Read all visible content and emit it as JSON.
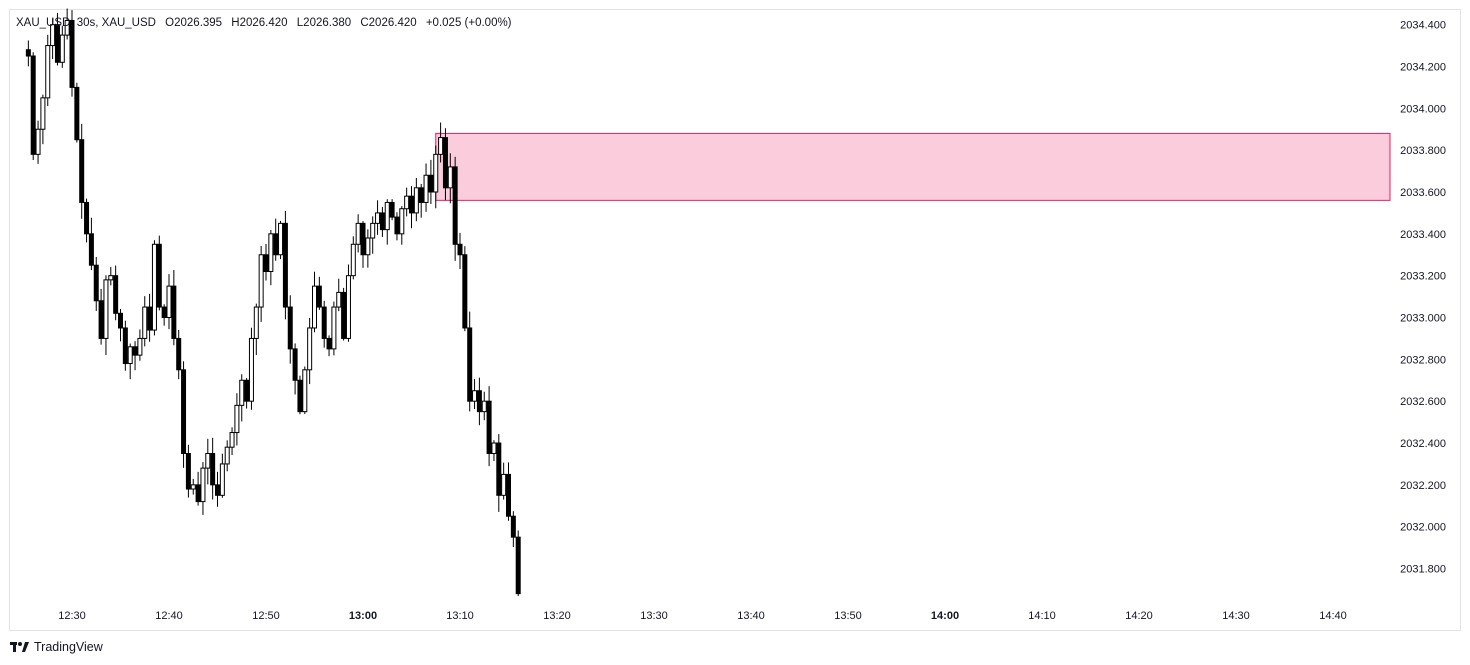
{
  "header": {
    "symbol": "XAU_USD, 30s, XAU_USD",
    "open": "O2026.395",
    "high": "H2026.420",
    "low": "L2026.380",
    "close": "C2026.420",
    "change": "+0.025 (+0.00%)"
  },
  "brand": {
    "name": "TradingView",
    "icon": "tradingview-logo-icon"
  },
  "colors": {
    "candle": "#000000",
    "zone_fill": "#f8bbd0",
    "zone_border": "#e91e63",
    "axis_text": "#131722",
    "frame": "#e0e3eb"
  },
  "chart_data": {
    "type": "candlestick",
    "y_axis": {
      "labels": [
        "2034.400",
        "2034.200",
        "2034.000",
        "2033.800",
        "2033.600",
        "2033.400",
        "2033.200",
        "2033.000",
        "2032.800",
        "2032.600",
        "2032.400",
        "2032.200",
        "2032.000",
        "2031.800"
      ],
      "range": [
        2031.64,
        2034.47
      ]
    },
    "x_axis": {
      "labels": [
        {
          "text": "12:30",
          "bold": false
        },
        {
          "text": "12:40",
          "bold": false
        },
        {
          "text": "12:50",
          "bold": false
        },
        {
          "text": "13:00",
          "bold": true
        },
        {
          "text": "13:10",
          "bold": false
        },
        {
          "text": "13:20",
          "bold": false
        },
        {
          "text": "13:30",
          "bold": false
        },
        {
          "text": "13:40",
          "bold": false
        },
        {
          "text": "13:50",
          "bold": false
        },
        {
          "text": "14:00",
          "bold": true
        },
        {
          "text": "14:10",
          "bold": false
        },
        {
          "text": "14:20",
          "bold": false
        },
        {
          "text": "14:30",
          "bold": false
        },
        {
          "text": "14:40",
          "bold": false
        }
      ],
      "interval": "30s"
    },
    "zone": {
      "from_time": "13:07:30",
      "to_time": "14:47:00",
      "top": 2033.88,
      "bottom": 2033.56
    },
    "trend_path": [
      [
        "12:25:30",
        2034.25
      ],
      [
        "12:26:00",
        2033.78
      ],
      [
        "12:26:30",
        2033.9
      ],
      [
        "12:27:00",
        2034.05
      ],
      [
        "12:27:30",
        2034.3
      ],
      [
        "12:28:00",
        2034.4
      ],
      [
        "12:28:30",
        2034.22
      ],
      [
        "12:29:00",
        2034.35
      ],
      [
        "12:29:30",
        2034.42
      ],
      [
        "12:30:00",
        2034.1
      ],
      [
        "12:30:30",
        2033.85
      ],
      [
        "12:31:00",
        2033.55
      ],
      [
        "12:31:30",
        2033.4
      ],
      [
        "12:32:00",
        2033.25
      ],
      [
        "12:32:30",
        2033.08
      ],
      [
        "12:33:00",
        2032.9
      ],
      [
        "12:33:30",
        2033.18
      ],
      [
        "12:34:00",
        2033.2
      ],
      [
        "12:34:30",
        2033.02
      ],
      [
        "12:35:00",
        2032.95
      ],
      [
        "12:35:30",
        2032.78
      ],
      [
        "12:36:00",
        2032.86
      ],
      [
        "12:36:30",
        2032.82
      ],
      [
        "12:37:00",
        2032.9
      ],
      [
        "12:37:30",
        2033.05
      ],
      [
        "12:38:00",
        2032.94
      ],
      [
        "12:38:30",
        2033.35
      ],
      [
        "12:39:00",
        2033.05
      ],
      [
        "12:39:30",
        2033.0
      ],
      [
        "12:40:00",
        2033.15
      ],
      [
        "12:40:30",
        2032.9
      ],
      [
        "12:41:00",
        2032.75
      ],
      [
        "12:41:30",
        2032.35
      ],
      [
        "12:42:00",
        2032.18
      ],
      [
        "12:42:30",
        2032.2
      ],
      [
        "12:43:00",
        2032.12
      ],
      [
        "12:43:30",
        2032.28
      ],
      [
        "12:44:00",
        2032.35
      ],
      [
        "12:44:30",
        2032.2
      ],
      [
        "12:45:00",
        2032.15
      ],
      [
        "12:45:30",
        2032.3
      ],
      [
        "12:46:00",
        2032.38
      ],
      [
        "12:46:30",
        2032.45
      ],
      [
        "12:47:00",
        2032.58
      ],
      [
        "12:47:30",
        2032.7
      ],
      [
        "12:48:00",
        2032.6
      ],
      [
        "12:48:30",
        2032.9
      ],
      [
        "12:49:00",
        2033.05
      ],
      [
        "12:49:30",
        2033.3
      ],
      [
        "12:50:00",
        2033.22
      ],
      [
        "12:50:30",
        2033.4
      ],
      [
        "12:51:00",
        2033.3
      ],
      [
        "12:51:30",
        2033.45
      ],
      [
        "12:52:00",
        2033.05
      ],
      [
        "12:52:30",
        2032.85
      ],
      [
        "12:53:00",
        2032.7
      ],
      [
        "12:53:30",
        2032.55
      ],
      [
        "12:54:00",
        2032.75
      ],
      [
        "12:54:30",
        2032.95
      ],
      [
        "12:55:00",
        2033.15
      ],
      [
        "12:55:30",
        2033.05
      ],
      [
        "12:56:00",
        2032.9
      ],
      [
        "12:56:30",
        2032.85
      ],
      [
        "12:57:00",
        2033.05
      ],
      [
        "12:57:30",
        2033.12
      ],
      [
        "12:58:00",
        2032.9
      ],
      [
        "12:58:30",
        2033.2
      ],
      [
        "12:59:00",
        2033.35
      ],
      [
        "12:59:30",
        2033.45
      ],
      [
        "13:00:00",
        2033.3
      ],
      [
        "13:00:30",
        2033.38
      ],
      [
        "13:01:00",
        2033.45
      ],
      [
        "13:01:30",
        2033.5
      ],
      [
        "13:02:00",
        2033.42
      ],
      [
        "13:02:30",
        2033.55
      ],
      [
        "13:03:00",
        2033.48
      ],
      [
        "13:03:30",
        2033.4
      ],
      [
        "13:04:00",
        2033.52
      ],
      [
        "13:04:30",
        2033.58
      ],
      [
        "13:05:00",
        2033.5
      ],
      [
        "13:05:30",
        2033.62
      ],
      [
        "13:06:00",
        2033.55
      ],
      [
        "13:06:30",
        2033.68
      ],
      [
        "13:07:00",
        2033.6
      ],
      [
        "13:07:30",
        2033.78
      ],
      [
        "13:08:00",
        2033.86
      ],
      [
        "13:08:30",
        2033.62
      ],
      [
        "13:09:00",
        2033.72
      ],
      [
        "13:09:30",
        2033.35
      ],
      [
        "13:10:00",
        2033.3
      ],
      [
        "13:10:30",
        2032.95
      ],
      [
        "13:11:00",
        2032.6
      ],
      [
        "13:11:30",
        2032.65
      ],
      [
        "13:12:00",
        2032.55
      ],
      [
        "13:12:30",
        2032.6
      ],
      [
        "13:13:00",
        2032.35
      ],
      [
        "13:13:30",
        2032.4
      ],
      [
        "13:14:00",
        2032.15
      ],
      [
        "13:14:30",
        2032.25
      ],
      [
        "13:15:00",
        2032.05
      ],
      [
        "13:15:30",
        2031.95
      ],
      [
        "13:16:00",
        2031.68
      ]
    ]
  }
}
